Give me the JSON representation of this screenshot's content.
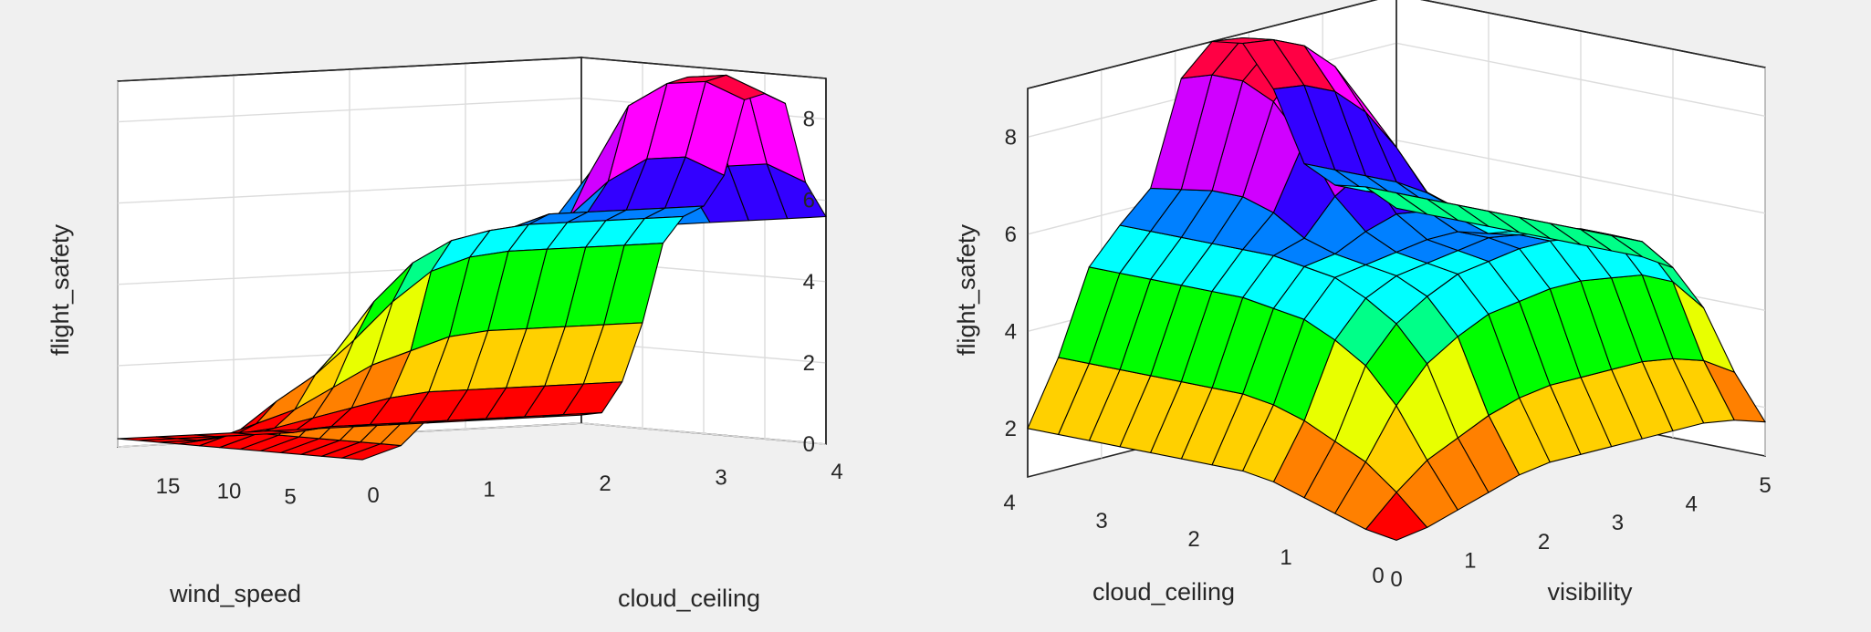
{
  "colors": {
    "background": "#f0f0f0",
    "axes_line": "#262626",
    "grid": "#dcdcdc",
    "mesh_edge": "#000000",
    "colormap": [
      "#ff0000",
      "#ff8000",
      "#ffd000",
      "#e8ff00",
      "#00ff00",
      "#00ff88",
      "#00ffff",
      "#0080ff",
      "#3300ff",
      "#d000ff",
      "#ff00ff",
      "#ff0044"
    ]
  },
  "chart_data": [
    {
      "type": "surface",
      "title": "",
      "xlabel": "wind_speed",
      "ylabel": "cloud_ceiling",
      "zlabel": "flight_safety",
      "xlim": [
        0,
        20
      ],
      "ylim": [
        0,
        4
      ],
      "zlim": [
        0,
        9
      ],
      "x_ticks": [
        "5",
        "10",
        "15"
      ],
      "x_tick_values": [
        5,
        10,
        15
      ],
      "y_ticks": [
        "0",
        "1",
        "2",
        "3",
        "4"
      ],
      "y_tick_values": [
        0,
        1,
        2,
        3,
        4
      ],
      "z_ticks": [
        "0",
        "2",
        "4",
        "6",
        "8"
      ],
      "z_tick_values": [
        0,
        2,
        4,
        6,
        8
      ],
      "grid": true,
      "x": [
        0,
        1.67,
        3.33,
        5,
        6.67,
        8.33,
        10,
        11.67,
        13.33,
        15,
        16.67,
        18.33,
        20
      ],
      "y": [
        0,
        0.333,
        0.667,
        1,
        1.333,
        1.667,
        2,
        2.333,
        2.667,
        3,
        3.333,
        3.667,
        4
      ],
      "z_rows_note": "rows indexed by wind_speed (x), columns by cloud_ceiling (y)",
      "z": [
        [
          0.2,
          0.5,
          1.4,
          2.4,
          3.6,
          4.5,
          5.0,
          5.3,
          5.6,
          5.6,
          5.6,
          5.6,
          5.6
        ],
        [
          0.2,
          0.5,
          1.4,
          2.4,
          3.6,
          4.5,
          5.0,
          5.4,
          5.6,
          6.4,
          6.9,
          6.9,
          6.4
        ],
        [
          0.2,
          0.5,
          1.4,
          2.4,
          3.6,
          4.5,
          5.0,
          5.5,
          6.7,
          8.3,
          8.8,
          8.8,
          8.3
        ],
        [
          0.2,
          0.5,
          1.4,
          2.4,
          3.6,
          4.5,
          5.0,
          5.5,
          6.8,
          8.5,
          9.0,
          9.0,
          8.5
        ],
        [
          0.2,
          0.5,
          1.4,
          2.4,
          3.6,
          4.5,
          5.0,
          5.5,
          6.7,
          8.3,
          8.8,
          8.8,
          8.3
        ],
        [
          0.2,
          0.5,
          1.4,
          2.4,
          3.6,
          4.5,
          5.0,
          5.4,
          5.6,
          6.4,
          6.9,
          6.9,
          6.4
        ],
        [
          0.2,
          0.5,
          1.4,
          2.4,
          3.6,
          4.5,
          5.0,
          5.3,
          5.6,
          5.6,
          5.6,
          5.6,
          5.6
        ],
        [
          0.2,
          0.5,
          1.4,
          2.4,
          3.6,
          4.5,
          5.0,
          5.2,
          5.3,
          5.3,
          5.3,
          5.3,
          5.3
        ],
        [
          0.2,
          0.5,
          1.2,
          1.8,
          2.6,
          3.5,
          4.2,
          4.5,
          4.6,
          4.6,
          4.6,
          4.6,
          4.6
        ],
        [
          0.2,
          0.3,
          0.6,
          0.9,
          1.4,
          1.9,
          2.2,
          2.5,
          2.6,
          2.6,
          2.6,
          2.6,
          2.6
        ],
        [
          0.2,
          0.2,
          0.3,
          0.4,
          0.6,
          0.8,
          1.0,
          1.1,
          1.1,
          1.1,
          1.1,
          1.1,
          1.1
        ],
        [
          0.2,
          0.2,
          0.2,
          0.2,
          0.2,
          0.3,
          0.3,
          0.3,
          0.3,
          0.3,
          0.3,
          0.3,
          0.3
        ],
        [
          0.2,
          0.2,
          0.2,
          0.2,
          0.2,
          0.2,
          0.2,
          0.2,
          0.2,
          0.2,
          0.2,
          0.2,
          0.2
        ]
      ]
    },
    {
      "type": "surface",
      "title": "",
      "xlabel": "visibility",
      "ylabel": "cloud_ceiling",
      "zlabel": "flight_safety",
      "xlim": [
        0,
        5
      ],
      "ylim": [
        0,
        4
      ],
      "zlim": [
        1,
        9
      ],
      "x_ticks": [
        "0",
        "1",
        "2",
        "3",
        "4",
        "5"
      ],
      "x_tick_values": [
        0,
        1,
        2,
        3,
        4,
        5
      ],
      "y_ticks": [
        "0",
        "1",
        "2",
        "3",
        "4"
      ],
      "y_tick_values": [
        0,
        1,
        2,
        3,
        4
      ],
      "z_ticks": [
        "2",
        "4",
        "6",
        "8"
      ],
      "z_tick_values": [
        2,
        4,
        6,
        8
      ],
      "grid": true,
      "x": [
        0,
        0.417,
        0.833,
        1.25,
        1.667,
        2.083,
        2.5,
        2.917,
        3.333,
        3.75,
        4.167,
        4.583,
        5
      ],
      "y": [
        0,
        0.333,
        0.667,
        1,
        1.333,
        1.667,
        2,
        2.333,
        2.667,
        3,
        3.333,
        3.667,
        4
      ],
      "z_rows_note": "rows indexed by visibility (x), columns by cloud_ceiling (y)",
      "z": [
        [
          1.2,
          1.3,
          1.5,
          1.7,
          1.9,
          2.0,
          2.0,
          2.0,
          2.0,
          2.0,
          2.0,
          2.0,
          2.0
        ],
        [
          1.3,
          1.9,
          2.4,
          2.7,
          3.0,
          3.2,
          3.3,
          3.3,
          3.3,
          3.3,
          3.3,
          3.3,
          3.3
        ],
        [
          1.5,
          2.4,
          3.4,
          4.1,
          4.5,
          4.8,
          4.9,
          5.0,
          5.0,
          5.0,
          5.0,
          5.0,
          5.0
        ],
        [
          1.7,
          2.7,
          4.1,
          4.8,
          5.2,
          5.5,
          5.6,
          5.7,
          5.7,
          5.7,
          5.7,
          5.7,
          5.7
        ],
        [
          1.9,
          3.0,
          4.5,
          5.2,
          5.5,
          5.6,
          5.7,
          5.9,
          6.3,
          6.5,
          6.5,
          6.4,
          6.3
        ],
        [
          2.0,
          3.2,
          4.8,
          5.5,
          5.6,
          5.7,
          6.0,
          6.6,
          7.6,
          8.3,
          8.6,
          8.6,
          8.4
        ],
        [
          2.0,
          3.3,
          4.9,
          5.6,
          5.7,
          5.8,
          6.2,
          7.0,
          8.3,
          9.0,
          9.2,
          9.2,
          9.0
        ],
        [
          2.0,
          3.3,
          5.0,
          5.7,
          5.8,
          5.8,
          6.1,
          6.8,
          8.0,
          8.7,
          9.0,
          9.0,
          8.8
        ],
        [
          2.0,
          3.3,
          5.0,
          5.7,
          5.7,
          5.6,
          5.8,
          6.2,
          7.0,
          7.6,
          7.9,
          7.9,
          7.7
        ],
        [
          2.0,
          3.3,
          4.9,
          5.6,
          5.6,
          5.5,
          5.6,
          5.7,
          5.9,
          6.0,
          6.0,
          6.0,
          6.0
        ],
        [
          2.0,
          3.2,
          4.8,
          5.5,
          5.5,
          5.4,
          5.4,
          5.4,
          5.4,
          5.4,
          5.4,
          5.4,
          5.4
        ],
        [
          1.9,
          3.0,
          4.5,
          5.2,
          5.2,
          5.2,
          5.2,
          5.2,
          5.2,
          5.2,
          5.2,
          5.2,
          5.2
        ],
        [
          1.7,
          2.6,
          3.8,
          4.5,
          4.6,
          4.6,
          4.6,
          4.6,
          4.6,
          4.6,
          4.6,
          4.6,
          4.6
        ]
      ]
    }
  ]
}
